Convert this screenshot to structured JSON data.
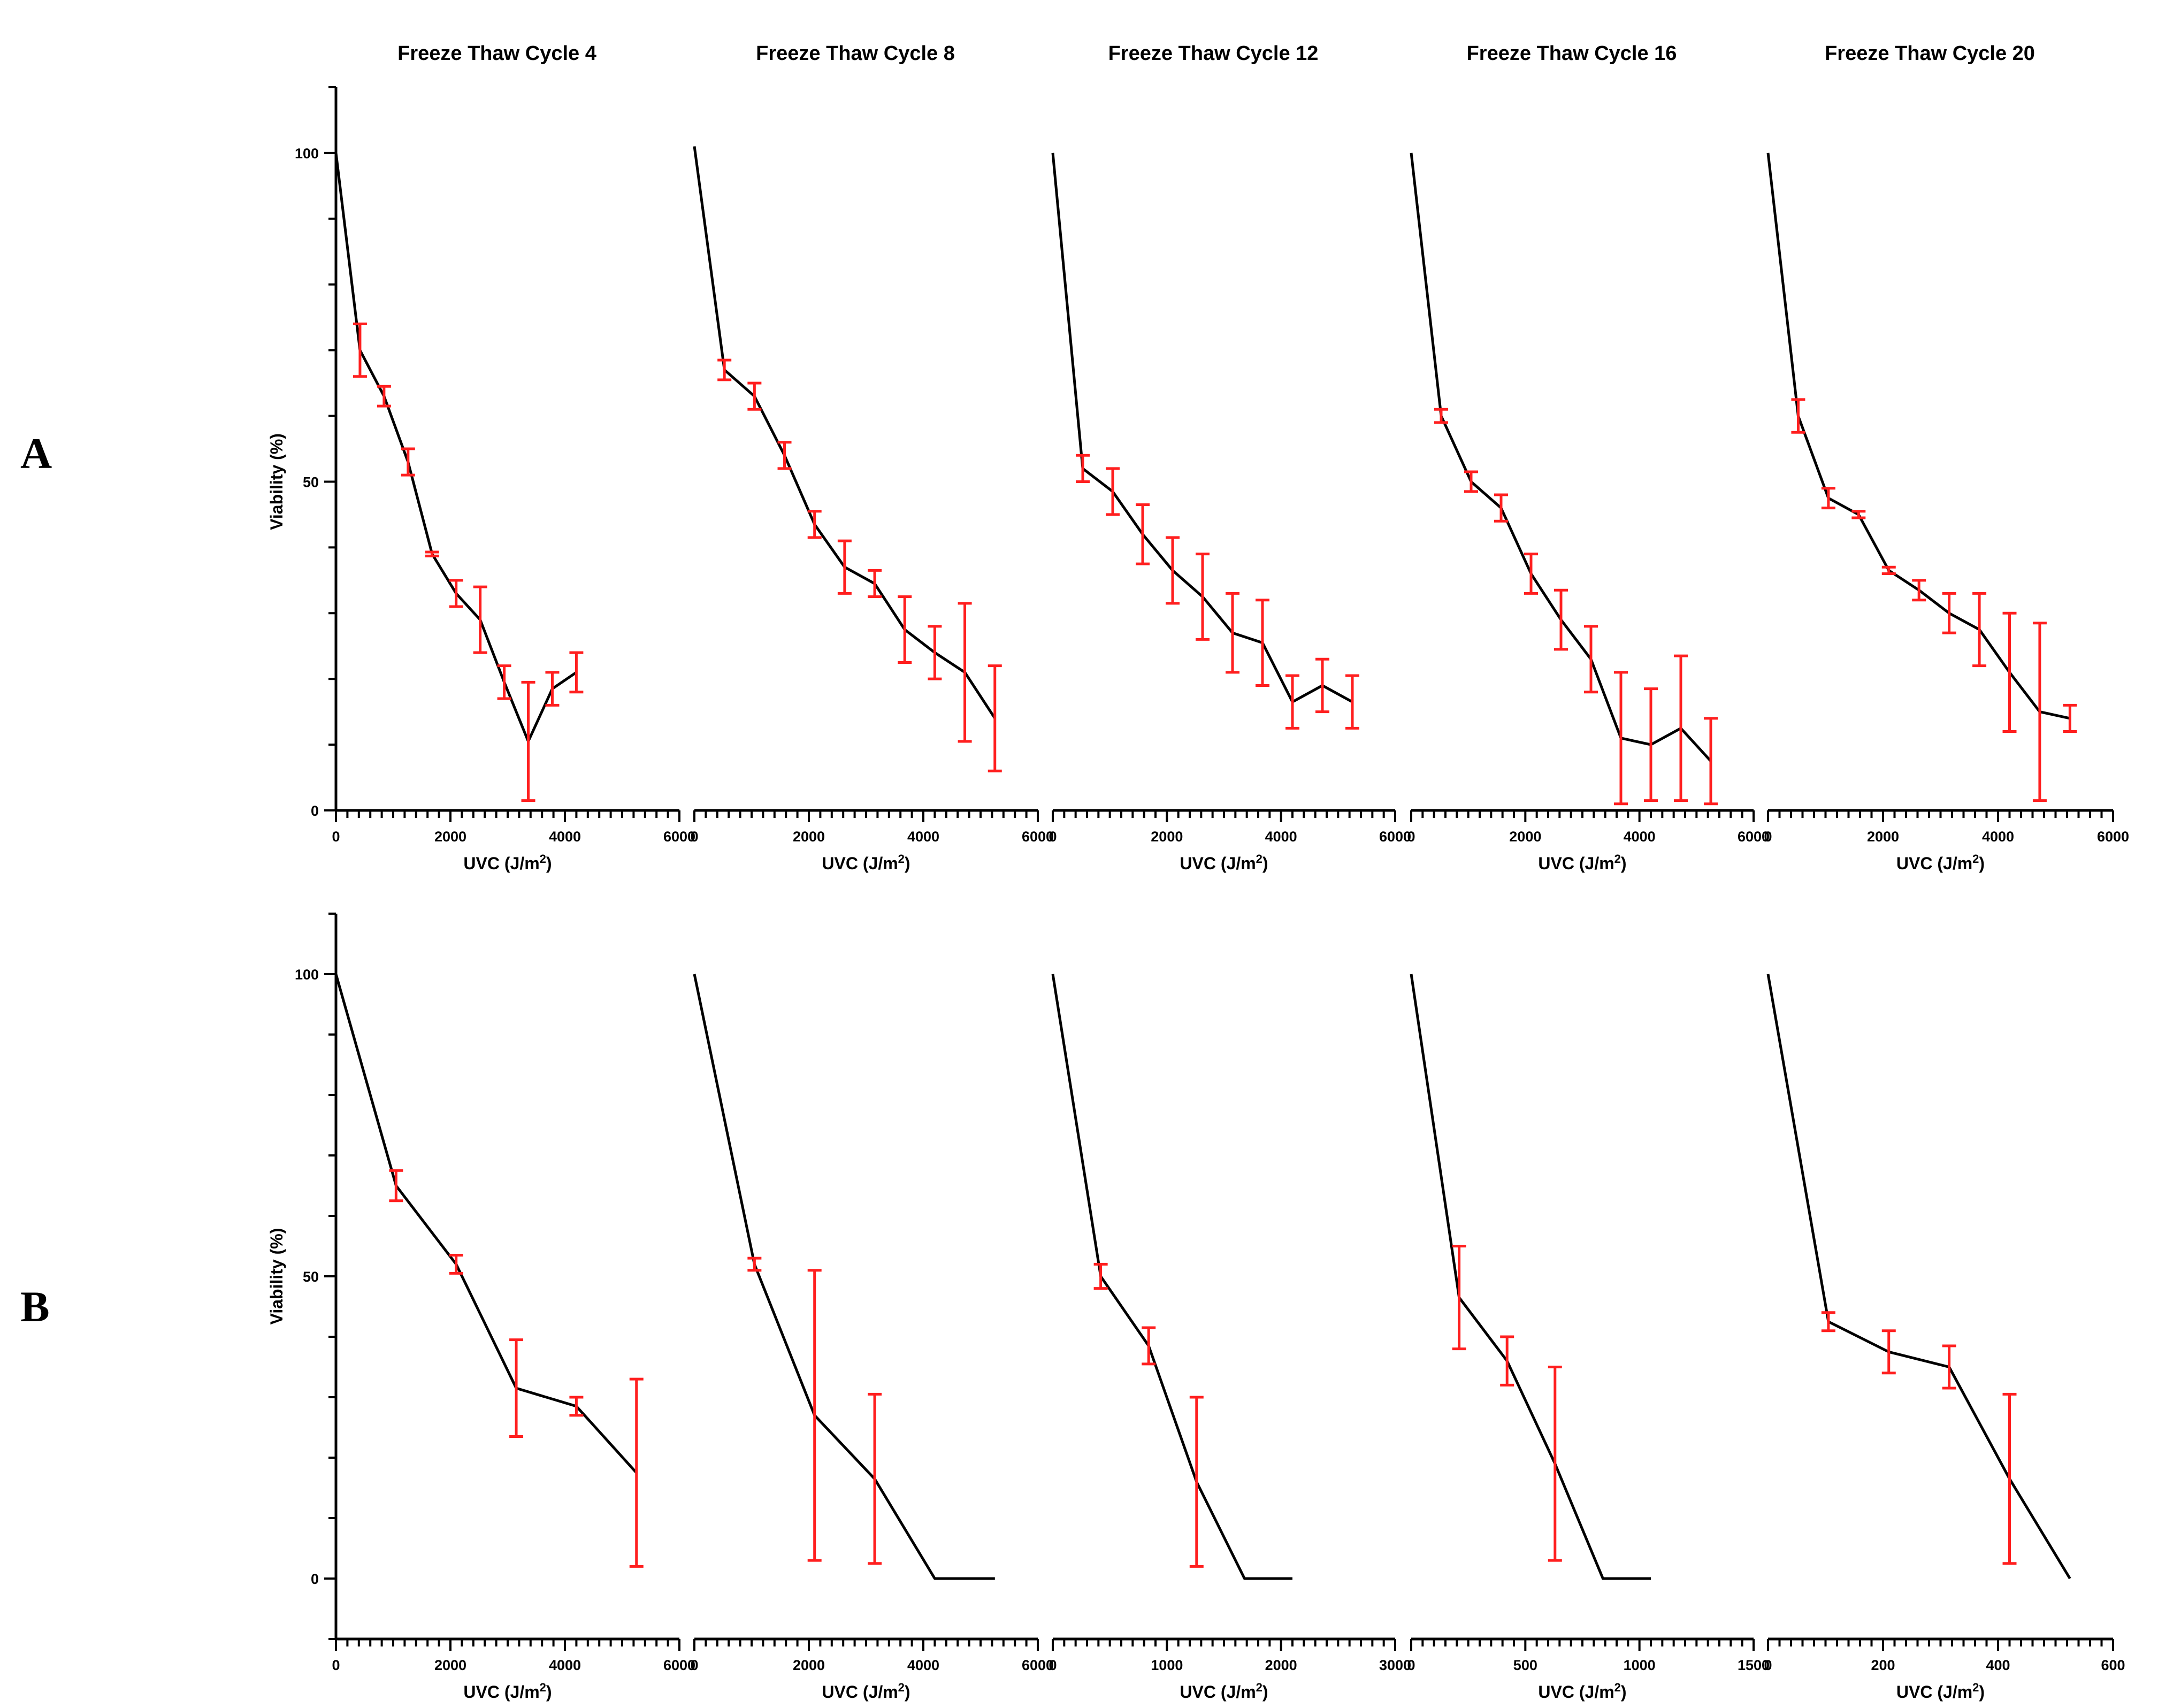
{
  "panel_labels": [
    "A",
    "B"
  ],
  "chart_data": [
    {
      "id": "A1",
      "type": "line",
      "title": "Freeze Thaw Cycle 4",
      "xlabel": "UVC (J/m2)",
      "ylabel": "Viability (%)",
      "xlim": [
        0,
        6000
      ],
      "ylim": [
        0,
        110
      ],
      "xticks": [
        0,
        2000,
        4000,
        6000
      ],
      "yticks": [
        0,
        50,
        100
      ],
      "x": [
        0,
        420,
        840,
        1260,
        1680,
        2100,
        2520,
        2940,
        3360,
        3780,
        4200
      ],
      "y": [
        100,
        70,
        63,
        53,
        39,
        33,
        29,
        19.5,
        10.5,
        18.5,
        21
      ],
      "err": [
        null,
        4,
        1.5,
        2,
        0.3,
        2,
        5,
        2.5,
        9,
        2.5,
        3
      ]
    },
    {
      "id": "A2",
      "type": "line",
      "title": "Freeze Thaw Cycle 8",
      "xlabel": "UVC (J/m2)",
      "ylabel": "",
      "xlim": [
        0,
        6000
      ],
      "ylim": [
        0,
        110
      ],
      "xticks": [
        0,
        2000,
        4000,
        6000
      ],
      "yticks": [],
      "x": [
        0,
        525,
        1050,
        1575,
        2100,
        2625,
        3150,
        3675,
        4200,
        4725,
        5250
      ],
      "y": [
        101,
        67,
        63,
        54,
        43.5,
        37,
        34.5,
        27.5,
        24,
        21,
        14
      ],
      "err": [
        null,
        1.5,
        2,
        2,
        2,
        4,
        2,
        5,
        4,
        10.5,
        8
      ]
    },
    {
      "id": "A3",
      "type": "line",
      "title": "Freeze Thaw Cycle 12",
      "xlabel": "UVC (J/m2)",
      "ylabel": "",
      "xlim": [
        0,
        6000
      ],
      "ylim": [
        0,
        110
      ],
      "xticks": [
        0,
        2000,
        4000,
        6000
      ],
      "yticks": [],
      "x": [
        0,
        525,
        1050,
        1575,
        2100,
        2625,
        3150,
        3675,
        4200,
        4725,
        5250
      ],
      "y": [
        100,
        52,
        48.5,
        42,
        36.5,
        32.5,
        27,
        25.5,
        16.5,
        19,
        16.5
      ],
      "err": [
        null,
        2,
        3.5,
        4.5,
        5,
        6.5,
        6,
        6.5,
        4,
        4,
        4
      ]
    },
    {
      "id": "A4",
      "type": "line",
      "title": "Freeze Thaw Cycle 16",
      "xlabel": "UVC (J/m2)",
      "ylabel": "",
      "xlim": [
        0,
        6000
      ],
      "ylim": [
        0,
        110
      ],
      "xticks": [
        0,
        2000,
        4000,
        6000
      ],
      "yticks": [],
      "x": [
        0,
        525,
        1050,
        1575,
        2100,
        2625,
        3150,
        3675,
        4200,
        4725,
        5250
      ],
      "y": [
        100,
        60,
        50,
        46,
        36,
        29,
        23,
        11,
        10,
        12.5,
        7.5
      ],
      "err": [
        null,
        1,
        1.5,
        2,
        3,
        4.5,
        5,
        10,
        8.5,
        11,
        6.5
      ]
    },
    {
      "id": "A5",
      "type": "line",
      "title": "Freeze Thaw Cycle 20",
      "xlabel": "UVC (J/m2)",
      "ylabel": "",
      "xlim": [
        0,
        6000
      ],
      "ylim": [
        0,
        110
      ],
      "xticks": [
        0,
        2000,
        4000,
        6000
      ],
      "yticks": [],
      "x": [
        0,
        525,
        1050,
        1575,
        2100,
        2625,
        3150,
        3675,
        4200,
        4725,
        5250
      ],
      "y": [
        100,
        60,
        47.5,
        45,
        36.5,
        33.5,
        30,
        27.5,
        21,
        15,
        14
      ],
      "err": [
        null,
        2.5,
        1.5,
        0.5,
        0.5,
        1.5,
        3,
        5.5,
        9,
        13.5,
        2
      ]
    },
    {
      "id": "B1",
      "type": "line",
      "title": "",
      "xlabel": "UVC (J/m2)",
      "ylabel": "Viability (%)",
      "xlim": [
        0,
        6000
      ],
      "ylim": [
        -10,
        110
      ],
      "xticks": [
        0,
        2000,
        4000,
        6000
      ],
      "yticks": [
        0,
        50,
        100
      ],
      "x": [
        0,
        1050,
        2100,
        3150,
        4200,
        5250
      ],
      "y": [
        100,
        65,
        52,
        31.5,
        28.5,
        17.5
      ],
      "err": [
        null,
        2.5,
        1.5,
        8,
        1.5,
        15.5
      ]
    },
    {
      "id": "B2",
      "type": "line",
      "title": "",
      "xlabel": "UVC (J/m2)",
      "ylabel": "",
      "xlim": [
        0,
        6000
      ],
      "ylim": [
        -10,
        110
      ],
      "xticks": [
        0,
        2000,
        4000,
        6000
      ],
      "yticks": [],
      "x": [
        0,
        1050,
        2100,
        3150,
        4200,
        5250
      ],
      "y": [
        100,
        52,
        27,
        16.5,
        0,
        0
      ],
      "err": [
        null,
        1,
        24,
        14,
        null,
        null
      ]
    },
    {
      "id": "B3",
      "type": "line",
      "title": "",
      "xlabel": "UVC (J/m2)",
      "ylabel": "",
      "xlim": [
        0,
        3000
      ],
      "ylim": [
        -10,
        110
      ],
      "xticks": [
        0,
        1000,
        2000,
        3000
      ],
      "yticks": [],
      "x": [
        0,
        420,
        840,
        1260,
        1680,
        2100
      ],
      "y": [
        100,
        50,
        38.5,
        16,
        0,
        0
      ],
      "err": [
        null,
        2,
        3,
        14,
        null,
        null
      ]
    },
    {
      "id": "B4",
      "type": "line",
      "title": "",
      "xlabel": "UVC (J/m2)",
      "ylabel": "",
      "xlim": [
        0,
        1500
      ],
      "ylim": [
        -10,
        110
      ],
      "xticks": [
        0,
        500,
        1000,
        1500
      ],
      "yticks": [],
      "x": [
        0,
        210,
        420,
        630,
        840,
        1050
      ],
      "y": [
        100,
        46.5,
        36,
        19,
        0,
        0
      ],
      "err": [
        null,
        8.5,
        4,
        16,
        null,
        null
      ]
    },
    {
      "id": "B5",
      "type": "line",
      "title": "",
      "xlabel": "UVC (J/m2)",
      "ylabel": "",
      "xlim": [
        0,
        600
      ],
      "ylim": [
        -10,
        110
      ],
      "xticks": [
        0,
        200,
        400,
        600
      ],
      "yticks": [],
      "x": [
        0,
        105,
        210,
        315,
        420,
        525
      ],
      "y": [
        100,
        42.5,
        37.5,
        35,
        16.5,
        0
      ],
      "err": [
        null,
        1.5,
        3.5,
        3.5,
        14,
        null
      ]
    }
  ]
}
